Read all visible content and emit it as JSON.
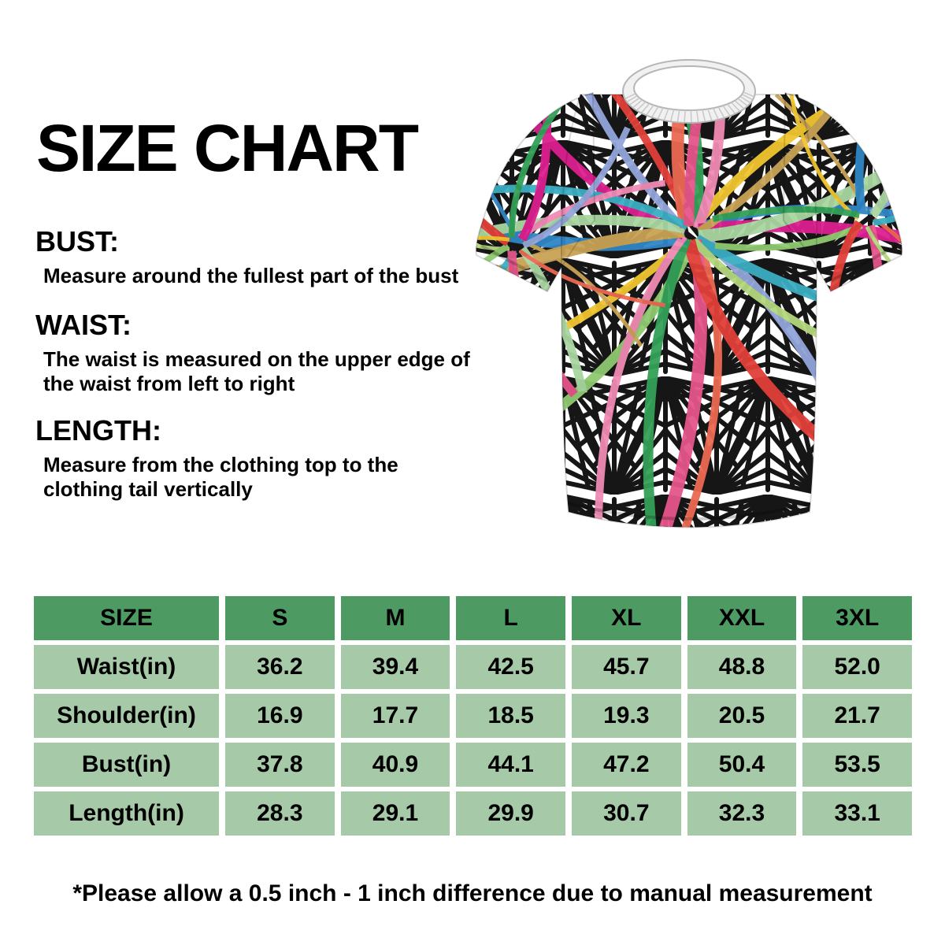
{
  "title": "SIZE CHART",
  "sections": [
    {
      "heading": "BUST:",
      "description": "Measure around the fullest part of the bust"
    },
    {
      "heading": "WAIST:",
      "description": "The waist is measured on the upper edge of the waist from left to right"
    },
    {
      "heading": "LENGTH:",
      "description": "Measure from the clothing top to the clothing tail vertically"
    }
  ],
  "product_image": {
    "ribbon_colors": [
      "#e04038",
      "#f0c52f",
      "#33a158",
      "#2f86c5",
      "#f08ab4",
      "#dc1f8f",
      "#c9a255",
      "#93a5da",
      "#a9d6a2",
      "#ec6a52",
      "#3badc2",
      "#e5558a",
      "#b5d77e",
      "#8fc96f"
    ],
    "pattern_color": "#161616",
    "collar_color": "#f1f1f1"
  },
  "size_table": {
    "header": [
      "SIZE",
      "S",
      "M",
      "L",
      "XL",
      "XXL",
      "3XL"
    ],
    "rows": [
      {
        "label": "Waist(in)",
        "values": [
          "36.2",
          "39.4",
          "42.5",
          "45.7",
          "48.8",
          "52.0"
        ]
      },
      {
        "label": "Shoulder(in)",
        "values": [
          "16.9",
          "17.7",
          "18.5",
          "19.3",
          "20.5",
          "21.7"
        ]
      },
      {
        "label": "Bust(in)",
        "values": [
          "37.8",
          "40.9",
          "44.1",
          "47.2",
          "50.4",
          "53.5"
        ]
      },
      {
        "label": "Length(in)",
        "values": [
          "28.3",
          "29.1",
          "29.9",
          "30.7",
          "32.3",
          "33.1"
        ]
      }
    ],
    "colors": {
      "header_bg": "#4d9b63",
      "cell_bg": "#a6caa7",
      "text": "#000000"
    }
  },
  "footnote": "*Please allow a 0.5 inch - 1 inch difference due to manual measurement"
}
